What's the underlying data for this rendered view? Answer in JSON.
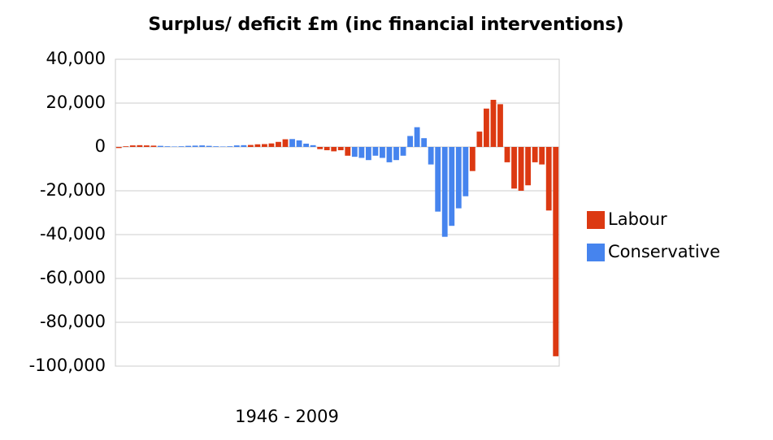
{
  "chart_data": {
    "type": "bar",
    "title": "Surplus/ deficit £m (inc financial interventions)",
    "x_label": "1946 - 2009",
    "categories": [
      null,
      null,
      null,
      null,
      null,
      null,
      null,
      null,
      null,
      null,
      null,
      null,
      null,
      null,
      null,
      null,
      null,
      null,
      null,
      null,
      null,
      null,
      null,
      null,
      null,
      null,
      null,
      null,
      null,
      null,
      null,
      null,
      null,
      null,
      null,
      null,
      null,
      null,
      null,
      null,
      null,
      null,
      null,
      null,
      null,
      null,
      null,
      null,
      null,
      null,
      null,
      null,
      null,
      null,
      null,
      null,
      null,
      null,
      null,
      null,
      null,
      null,
      null,
      null
    ],
    "series": [
      {
        "name": "Labour",
        "color": "#dc3912",
        "values": [
          -500,
          300,
          700,
          800,
          700,
          600,
          null,
          null,
          null,
          null,
          null,
          null,
          null,
          null,
          null,
          null,
          null,
          null,
          null,
          900,
          1200,
          1300,
          1600,
          2300,
          3500,
          null,
          null,
          null,
          null,
          -1000,
          -1500,
          -2000,
          -1500,
          -4000,
          null,
          null,
          null,
          null,
          null,
          null,
          null,
          null,
          null,
          null,
          null,
          null,
          null,
          null,
          null,
          null,
          null,
          -11000,
          7000,
          17500,
          21500,
          19500,
          -7000,
          -19000,
          -20000,
          -17500,
          -7000,
          -8000,
          -29000,
          -95500
        ]
      },
      {
        "name": "Conservative",
        "color": "#4684ee",
        "values": [
          null,
          null,
          null,
          null,
          null,
          null,
          500,
          300,
          200,
          300,
          500,
          600,
          700,
          500,
          300,
          200,
          300,
          700,
          800,
          null,
          null,
          null,
          null,
          null,
          null,
          3600,
          3000,
          1500,
          800,
          null,
          null,
          null,
          null,
          null,
          -4500,
          -5000,
          -6000,
          -4000,
          -5000,
          -7000,
          -6000,
          -4000,
          5000,
          9000,
          4000,
          -8000,
          -29500,
          -41000,
          -36000,
          -28000,
          -22500,
          null,
          null,
          null,
          null,
          null,
          null,
          null,
          null,
          null,
          null,
          null,
          null,
          null
        ]
      }
    ],
    "ylim": [
      -100000,
      40000
    ],
    "yticks": [
      {
        "value": -100000,
        "label": "-100,000"
      },
      {
        "value": -80000,
        "label": "-80,000"
      },
      {
        "value": -60000,
        "label": "-60,000"
      },
      {
        "value": -40000,
        "label": "-40,000"
      },
      {
        "value": -20000,
        "label": "-20,000"
      },
      0,
      {
        "value": 20000,
        "label": "20,000"
      },
      {
        "value": 40000,
        "label": "40,000"
      }
    ],
    "grid": true,
    "legend": "right"
  }
}
